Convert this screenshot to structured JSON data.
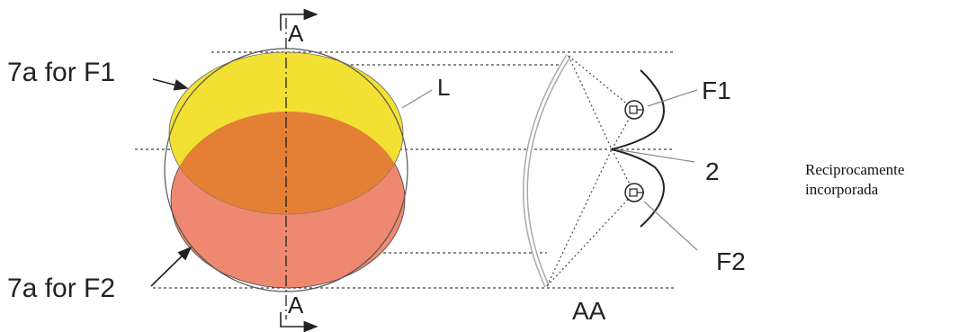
{
  "labels": {
    "section_top": "A",
    "section_bottom": "A",
    "pattern_f1": "7a for F1",
    "pattern_f2": "7a for F2",
    "lens": "L",
    "filament_1": "F1",
    "filament_2": "F2",
    "reflector": "2",
    "section_view": "AA"
  },
  "caption": {
    "line1": "Reciprocamente",
    "line2": "incorporada"
  },
  "colors": {
    "pattern_f1": "#F2E033",
    "pattern_f2": "#EE8870",
    "overlap": "#E38035",
    "line": "#222222"
  }
}
